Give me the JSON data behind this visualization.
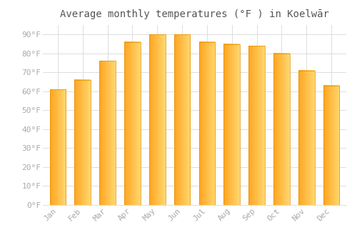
{
  "title": "Average monthly temperatures (°F ) in Koelwār",
  "months": [
    "Jan",
    "Feb",
    "Mar",
    "Apr",
    "May",
    "Jun",
    "Jul",
    "Aug",
    "Sep",
    "Oct",
    "Nov",
    "Dec"
  ],
  "values": [
    61,
    66,
    76,
    86,
    90,
    90,
    86,
    85,
    84,
    80,
    71,
    63
  ],
  "bar_color_left": "#FFA520",
  "bar_color_right": "#FFD060",
  "bar_edge_color": "#E09000",
  "background_color": "#FFFFFF",
  "grid_color": "#DDDDDD",
  "ylim": [
    0,
    95
  ],
  "yticks": [
    0,
    10,
    20,
    30,
    40,
    50,
    60,
    70,
    80,
    90
  ],
  "tick_label_color": "#AAAAAA",
  "title_color": "#555555",
  "title_fontsize": 10,
  "tick_fontsize": 8,
  "figsize": [
    5.0,
    3.5
  ],
  "dpi": 100
}
